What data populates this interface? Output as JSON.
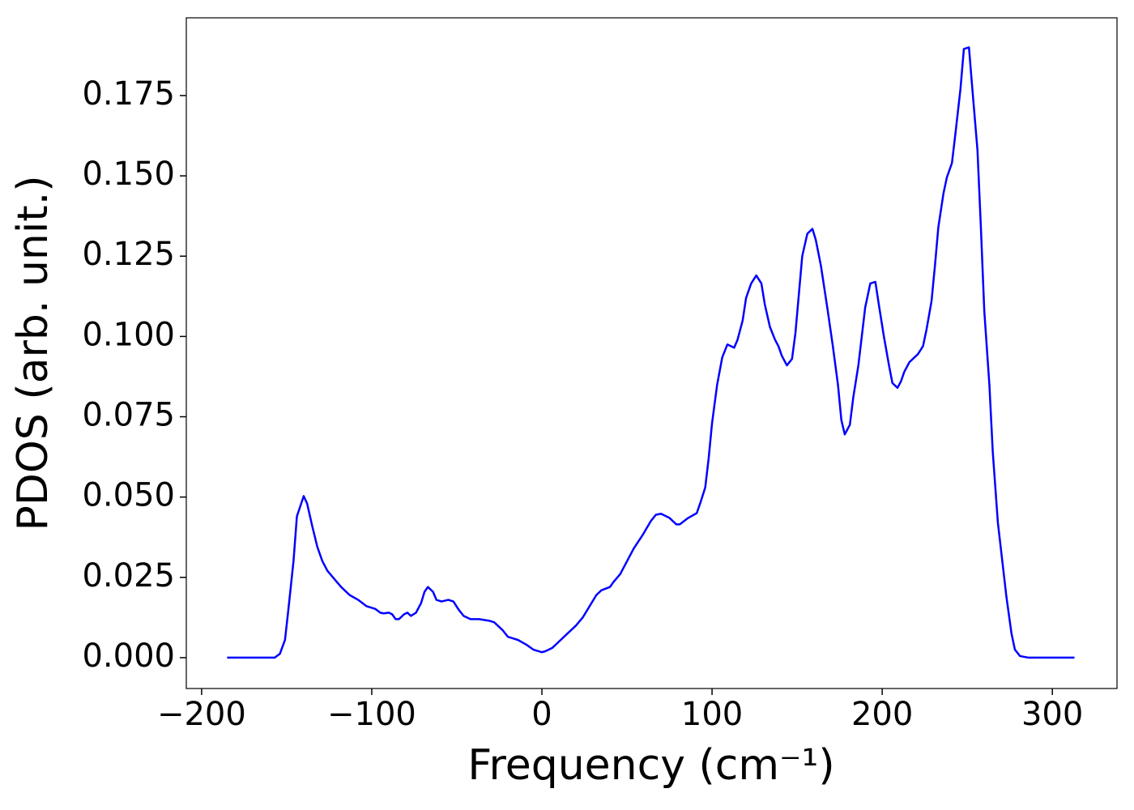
{
  "chart_data": {
    "type": "line",
    "xlabel": "Frequency (cm⁻¹)",
    "ylabel": "PDOS (arb. unit.)",
    "x": [
      -185,
      -157,
      -154,
      -151,
      -149,
      -146,
      -144,
      -140,
      -138,
      -135,
      -132,
      -129,
      -126,
      -122,
      -118,
      -113,
      -108,
      -103,
      -98,
      -95,
      -93,
      -90,
      -88,
      -86,
      -84,
      -81,
      -79,
      -77,
      -74,
      -71,
      -69,
      -67,
      -64,
      -62,
      -59,
      -55,
      -52,
      -49,
      -46,
      -42,
      -37,
      -31,
      -28,
      -23,
      -20,
      -14,
      -9,
      -5,
      0,
      2,
      6,
      10,
      15,
      20,
      24,
      28,
      32,
      35,
      40,
      42,
      46,
      50,
      54,
      59,
      64,
      67,
      70,
      75,
      79,
      81,
      86,
      91,
      93,
      96,
      98,
      100,
      103,
      106,
      109,
      111,
      113,
      115,
      118,
      120,
      123,
      126,
      129,
      131,
      134,
      137,
      139,
      141,
      144,
      147,
      149,
      151,
      153,
      156,
      159,
      161,
      164,
      166,
      168,
      171,
      174,
      176,
      178,
      181,
      183,
      186,
      188,
      190,
      193,
      196,
      198,
      201,
      204,
      206,
      209,
      211,
      213,
      216,
      219,
      221,
      224,
      226,
      229,
      231,
      233,
      236,
      238,
      241,
      243,
      246,
      248,
      251,
      253,
      256,
      258,
      260,
      263,
      265,
      268,
      273,
      276,
      278,
      281,
      286,
      313
    ],
    "values": [
      0,
      0,
      0.0012,
      0.0055,
      0.015,
      0.03,
      0.044,
      0.0503,
      0.048,
      0.041,
      0.0345,
      0.03,
      0.027,
      0.0245,
      0.022,
      0.0195,
      0.018,
      0.016,
      0.0152,
      0.014,
      0.0138,
      0.014,
      0.0135,
      0.012,
      0.012,
      0.0135,
      0.014,
      0.013,
      0.014,
      0.017,
      0.0205,
      0.022,
      0.0205,
      0.018,
      0.0175,
      0.018,
      0.0175,
      0.015,
      0.013,
      0.012,
      0.012,
      0.0115,
      0.011,
      0.0085,
      0.0065,
      0.0055,
      0.004,
      0.0025,
      0.0017,
      0.002,
      0.003,
      0.005,
      0.0075,
      0.01,
      0.0125,
      0.016,
      0.0195,
      0.021,
      0.022,
      0.0235,
      0.026,
      0.03,
      0.034,
      0.038,
      0.0425,
      0.0445,
      0.0448,
      0.0435,
      0.0415,
      0.0415,
      0.0435,
      0.045,
      0.048,
      0.053,
      0.062,
      0.073,
      0.085,
      0.0935,
      0.0975,
      0.097,
      0.0965,
      0.099,
      0.105,
      0.112,
      0.1165,
      0.119,
      0.1165,
      0.11,
      0.103,
      0.099,
      0.097,
      0.094,
      0.091,
      0.093,
      0.101,
      0.113,
      0.125,
      0.132,
      0.1335,
      0.13,
      0.122,
      0.115,
      0.108,
      0.097,
      0.085,
      0.074,
      0.0695,
      0.0725,
      0.081,
      0.091,
      0.1,
      0.109,
      0.1165,
      0.117,
      0.11,
      0.1,
      0.091,
      0.0855,
      0.084,
      0.086,
      0.089,
      0.092,
      0.0935,
      0.0945,
      0.097,
      0.102,
      0.111,
      0.122,
      0.134,
      0.1445,
      0.1495,
      0.154,
      0.163,
      0.177,
      0.1895,
      0.19,
      0.177,
      0.158,
      0.134,
      0.108,
      0.085,
      0.064,
      0.042,
      0.019,
      0.0075,
      0.0025,
      0.0005,
      0,
      0
    ],
    "color": "#0000ff",
    "xlim": [
      -209,
      338
    ],
    "ylim": [
      -0.0096,
      0.1992
    ],
    "xticks": [
      {
        "value": -200,
        "label": "−200"
      },
      {
        "value": -100,
        "label": "−100"
      },
      0,
      100,
      200,
      300
    ],
    "yticks": [
      {
        "value": 0,
        "label": "0.000"
      },
      {
        "value": 0.025,
        "label": "0.025"
      },
      {
        "value": 0.05,
        "label": "0.050"
      },
      {
        "value": 0.075,
        "label": "0.075"
      },
      {
        "value": 0.1,
        "label": "0.100"
      },
      {
        "value": 0.125,
        "label": "0.125"
      },
      {
        "value": 0.15,
        "label": "0.150"
      },
      {
        "value": 0.175,
        "label": "0.175"
      }
    ],
    "grid": false
  }
}
